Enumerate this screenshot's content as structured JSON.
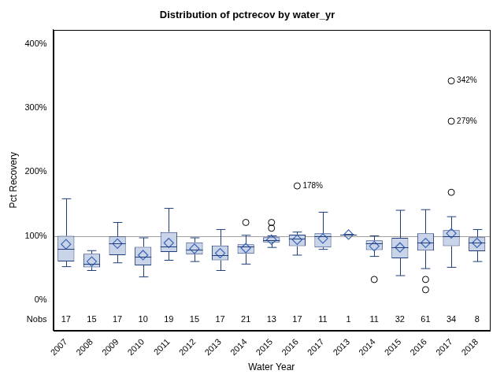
{
  "chart_data": {
    "type": "boxplot",
    "title": "Distribution of pctrecov by water_yr",
    "x_label": "Water Year",
    "y_label": "Pct Recovery",
    "categories": [
      "2007",
      "2008",
      "2009",
      "2010",
      "2011",
      "2012",
      "2013",
      "2014",
      "2015",
      "2016",
      "2017",
      "2013",
      "2014",
      "2015",
      "2016",
      "2017",
      "2018"
    ],
    "boxes": [
      {
        "min": 52,
        "q1": 60,
        "median": 80,
        "q3": 100,
        "max": 158,
        "mean": 87,
        "outliers": []
      },
      {
        "min": 46,
        "q1": 51,
        "median": 56,
        "q3": 72,
        "max": 77,
        "mean": 60,
        "outliers": []
      },
      {
        "min": 58,
        "q1": 70,
        "median": 88,
        "q3": 99,
        "max": 121,
        "mean": 88,
        "outliers": []
      },
      {
        "min": 36,
        "q1": 54,
        "median": 68,
        "q3": 83,
        "max": 97,
        "mean": 70,
        "outliers": []
      },
      {
        "min": 62,
        "q1": 75,
        "median": 83,
        "q3": 106,
        "max": 143,
        "mean": 89,
        "outliers": []
      },
      {
        "min": 60,
        "q1": 71,
        "median": 78,
        "q3": 90,
        "max": 97,
        "mean": 80,
        "outliers": []
      },
      {
        "min": 46,
        "q1": 62,
        "median": 70,
        "q3": 85,
        "max": 110,
        "mean": 73,
        "outliers": []
      },
      {
        "min": 56,
        "q1": 72,
        "median": 84,
        "q3": 87,
        "max": 101,
        "mean": 81,
        "outliers": [
          121
        ]
      },
      {
        "min": 82,
        "q1": 90,
        "median": 93,
        "q3": 98,
        "max": 100,
        "mean": 94,
        "outliers": [
          112,
          121
        ]
      },
      {
        "min": 70,
        "q1": 84,
        "median": 96,
        "q3": 102,
        "max": 106,
        "mean": 94,
        "outliers": [
          178
        ]
      },
      {
        "min": 79,
        "q1": 82,
        "median": 100,
        "q3": 104,
        "max": 137,
        "mean": 96,
        "outliers": []
      },
      {
        "min": 102,
        "q1": 102,
        "median": 102,
        "q3": 102,
        "max": 102,
        "mean": 102,
        "outliers": []
      },
      {
        "min": 68,
        "q1": 78,
        "median": 89,
        "q3": 93,
        "max": 100,
        "mean": 84,
        "outliers": [
          32
        ]
      },
      {
        "min": 38,
        "q1": 65,
        "median": 82,
        "q3": 97,
        "max": 140,
        "mean": 82,
        "outliers": []
      },
      {
        "min": 49,
        "q1": 77,
        "median": 90,
        "q3": 104,
        "max": 141,
        "mean": 89,
        "outliers": [
          32,
          16
        ]
      },
      {
        "min": 51,
        "q1": 84,
        "median": 99,
        "q3": 109,
        "max": 130,
        "mean": 104,
        "outliers": [
          168,
          279,
          342
        ]
      },
      {
        "min": 60,
        "q1": 76,
        "median": 90,
        "q3": 98,
        "max": 110,
        "mean": 89,
        "outliers": []
      }
    ],
    "nobs_label": "Nobs",
    "nobs": [
      17,
      15,
      17,
      10,
      19,
      15,
      17,
      21,
      13,
      17,
      11,
      1,
      11,
      32,
      61,
      34,
      8
    ],
    "annotations": [
      {
        "text": "178%",
        "category_index": 9,
        "value": 178
      },
      {
        "text": "279%",
        "category_index": 15,
        "value": 279
      },
      {
        "text": "342%",
        "category_index": 15,
        "value": 342
      }
    ],
    "reference_line": 100,
    "color": "#c9d4e8",
    "ylim": [
      -48,
      422
    ],
    "yticks": [
      {
        "value": 0,
        "label": "0%"
      },
      {
        "value": 100,
        "label": "100%"
      },
      {
        "value": 200,
        "label": "200%"
      },
      {
        "value": 300,
        "label": "300%"
      },
      {
        "value": 400,
        "label": "400%"
      }
    ],
    "grid": false
  }
}
